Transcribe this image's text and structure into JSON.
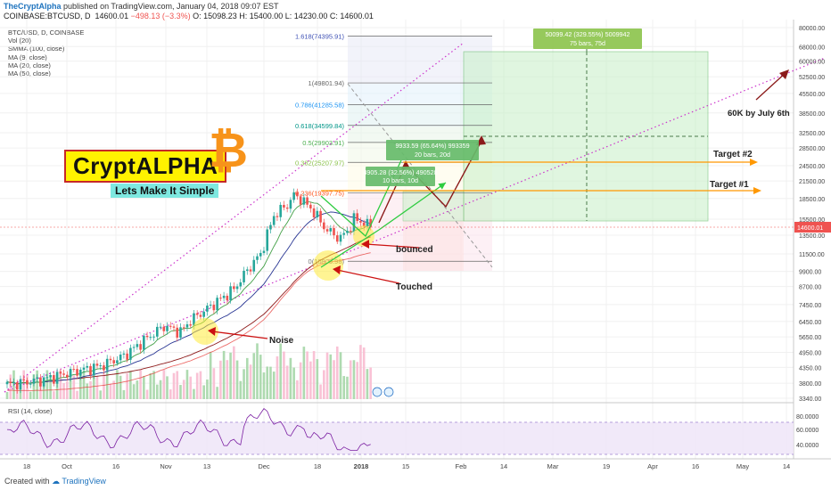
{
  "header": {
    "author": "TheCryptAlpha",
    "published": "published on TradingView.com, January 04, 2018 09:07 EST",
    "symbol": "COINBASE:BTCUSD, D",
    "last": "14600.01",
    "change": "−498.13 (−3.3%)",
    "o": "O: 15098.23",
    "h": "H: 15400.00",
    "l": "L: 14230.00",
    "c": "C: 14600.01"
  },
  "indicators": [
    "BTC/USD, D, COINBASE",
    "Vol (20)",
    "SMMA (100, close)",
    "MA (9, close)",
    "MA (20, close)",
    "MA (50, close)"
  ],
  "rsi_label": "RSI (14, close)",
  "footer": {
    "created": "Created with",
    "brand": "TradingView"
  },
  "logo": {
    "name": "CryptALPHA",
    "tagline": "Lets Make It Simple"
  },
  "colors": {
    "up": "#26a69a",
    "down": "#ef5350",
    "up_volume": "#a5d6a7",
    "down_volume": "#f8bbd0",
    "fib": "#2e7d32",
    "target": "#ff9800",
    "arrow": "#b71c1c",
    "trend": "#cc33cc",
    "rsi": "#7b1fa2"
  },
  "chart_data": {
    "type": "candlestick",
    "price_axis_ticks": [
      "80000.00",
      "68000.00",
      "60000.00",
      "52500.00",
      "45500.00",
      "38500.00",
      "32500.00",
      "28500.00",
      "24500.00",
      "21500.00",
      "18500.00",
      "15500.00",
      "13500.00",
      "11500.00",
      "9900.00",
      "8700.00",
      "7450.00",
      "6450.00",
      "5650.00",
      "4950.00",
      "4350.00",
      "3800.00",
      "3340.00"
    ],
    "current_price": "14600.01",
    "rsi_ticks": [
      "80.0000",
      "60.0000",
      "40.0000"
    ],
    "time_axis_ticks": [
      "18",
      "Oct",
      "16",
      "Nov",
      "13",
      "Dec",
      "18",
      "2018",
      "15",
      "Feb",
      "14",
      "Mar",
      "19",
      "Apr",
      "16",
      "May",
      "14"
    ],
    "fib_levels": [
      {
        "label": "1.618(74395.91)",
        "value": 74395.91
      },
      {
        "label": "1(49801.94)",
        "value": 49801.94
      },
      {
        "label": "0.786(41285.58)",
        "value": 41285.58
      },
      {
        "label": "0.618(34599.84)",
        "value": 34599.84
      },
      {
        "label": "0.5(29903.91)",
        "value": 29903.91
      },
      {
        "label": "0.382(25207.97)",
        "value": 25207.97
      },
      {
        "label": "0.236(19397.75)",
        "value": 19397.75
      },
      {
        "label": "0(10805.98)",
        "value": 10805.98
      }
    ],
    "measure_boxes": [
      {
        "line1": "50099.42 (329.55%) 5009942",
        "line2": "75 bars, 75d"
      },
      {
        "line1": "9933.59 (65.64%) 993359",
        "line2": "20 bars, 20d"
      },
      {
        "line1": "4905.28 (32.56%) 490528",
        "line2": "10 bars, 10d"
      }
    ],
    "targets": [
      {
        "label": "Target #2"
      },
      {
        "label": "Target #1"
      }
    ],
    "annotations": [
      "60K by July  6th",
      "bounced",
      "Touched",
      "Noise"
    ]
  }
}
